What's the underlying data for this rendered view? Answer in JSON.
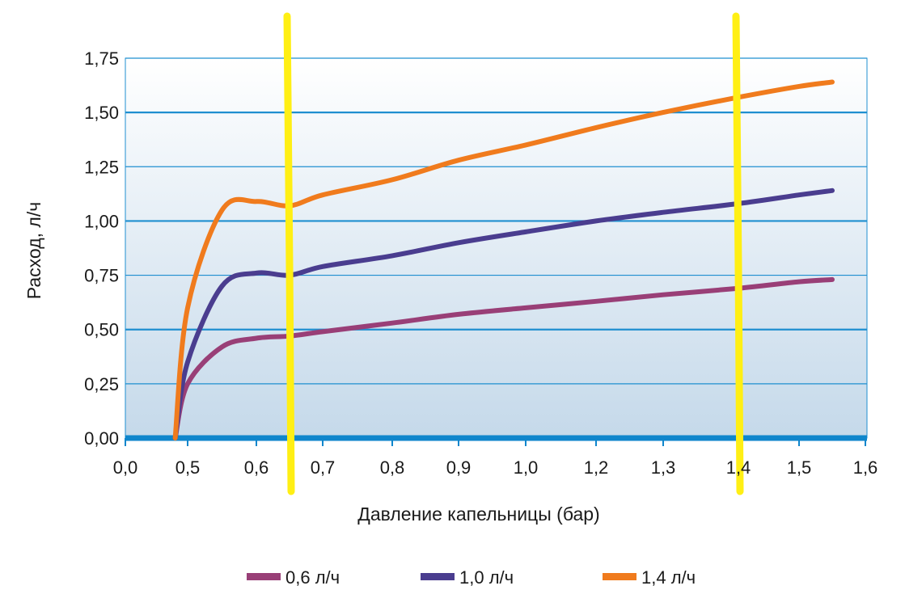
{
  "chart_data": {
    "type": "line",
    "xlabel": "Давление капельницы (бар)",
    "ylabel": "Расход, л/ч",
    "ylim": [
      0,
      1.75
    ],
    "grid": "horizontal",
    "legend_position": "bottom",
    "x_ticks": [
      "0,0",
      "0,5",
      "0,6",
      "0,7",
      "0,8",
      "0,9",
      "1,0",
      "1,2",
      "1,3",
      "1,4",
      "1,5",
      "1,6"
    ],
    "y_ticks": [
      "0,00",
      "0,25",
      "0,50",
      "0,75",
      "1,00",
      "1,25",
      "1,50",
      "1,75"
    ],
    "series": [
      {
        "name": "0,6 л/ч",
        "color": "#993f77",
        "points": [
          [
            0.4,
            0.0
          ],
          [
            0.5,
            0.25
          ],
          [
            0.55,
            0.42
          ],
          [
            0.6,
            0.46
          ],
          [
            0.65,
            0.47
          ],
          [
            0.7,
            0.49
          ],
          [
            0.8,
            0.53
          ],
          [
            0.9,
            0.57
          ],
          [
            1.0,
            0.6
          ],
          [
            1.2,
            0.63
          ],
          [
            1.3,
            0.66
          ],
          [
            1.4,
            0.69
          ],
          [
            1.5,
            0.72
          ],
          [
            1.55,
            0.73
          ]
        ]
      },
      {
        "name": "1,0 л/ч",
        "color": "#4a3d8f",
        "points": [
          [
            0.4,
            0.0
          ],
          [
            0.5,
            0.35
          ],
          [
            0.55,
            0.7
          ],
          [
            0.6,
            0.76
          ],
          [
            0.65,
            0.75
          ],
          [
            0.7,
            0.79
          ],
          [
            0.8,
            0.84
          ],
          [
            0.9,
            0.9
          ],
          [
            1.0,
            0.95
          ],
          [
            1.2,
            1.0
          ],
          [
            1.3,
            1.04
          ],
          [
            1.4,
            1.08
          ],
          [
            1.5,
            1.12
          ],
          [
            1.55,
            1.14
          ]
        ]
      },
      {
        "name": "1,4 л/ч",
        "color": "#f07b1d",
        "points": [
          [
            0.4,
            0.0
          ],
          [
            0.5,
            0.6
          ],
          [
            0.55,
            1.05
          ],
          [
            0.6,
            1.09
          ],
          [
            0.65,
            1.07
          ],
          [
            0.7,
            1.12
          ],
          [
            0.8,
            1.19
          ],
          [
            0.9,
            1.28
          ],
          [
            1.0,
            1.35
          ],
          [
            1.2,
            1.43
          ],
          [
            1.3,
            1.5
          ],
          [
            1.4,
            1.57
          ],
          [
            1.5,
            1.62
          ],
          [
            1.55,
            1.64
          ]
        ]
      }
    ],
    "highlight_markers": [
      0.65,
      1.4
    ],
    "colors": {
      "grid": "#1f8fd0",
      "axis": "#0f86cc",
      "highlight": "#ffef14",
      "plot_top": "#ffffff",
      "plot_bottom": "#c5d9ea"
    }
  }
}
